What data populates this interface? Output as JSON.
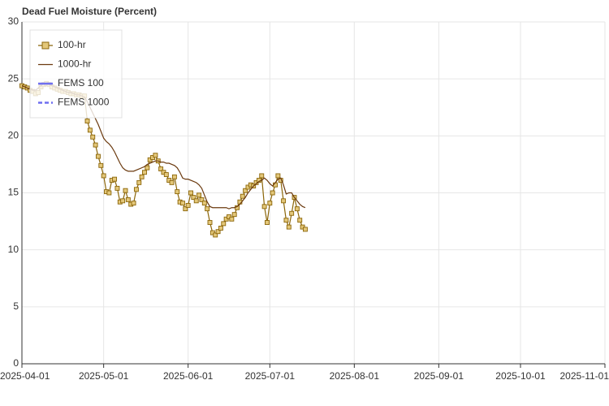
{
  "chart_data": {
    "type": "line",
    "title": "Dead Fuel Moisture (Percent)",
    "x": [
      "2025-04-01",
      "2025-04-02",
      "2025-04-03",
      "2025-04-04",
      "2025-04-05",
      "2025-04-06",
      "2025-04-07",
      "2025-04-08",
      "2025-04-09",
      "2025-04-10",
      "2025-04-11",
      "2025-04-12",
      "2025-04-13",
      "2025-04-14",
      "2025-04-15",
      "2025-04-16",
      "2025-04-17",
      "2025-04-18",
      "2025-04-19",
      "2025-04-20",
      "2025-04-21",
      "2025-04-22",
      "2025-04-23",
      "2025-04-24",
      "2025-04-25",
      "2025-04-26",
      "2025-04-27",
      "2025-04-28",
      "2025-04-29",
      "2025-04-30",
      "2025-05-01",
      "2025-05-02",
      "2025-05-03",
      "2025-05-04",
      "2025-05-05",
      "2025-05-06",
      "2025-05-07",
      "2025-05-08",
      "2025-05-09",
      "2025-05-10",
      "2025-05-11",
      "2025-05-12",
      "2025-05-13",
      "2025-05-14",
      "2025-05-15",
      "2025-05-16",
      "2025-05-17",
      "2025-05-18",
      "2025-05-19",
      "2025-05-20",
      "2025-05-21",
      "2025-05-22",
      "2025-05-23",
      "2025-05-24",
      "2025-05-25",
      "2025-05-26",
      "2025-05-27",
      "2025-05-28",
      "2025-05-29",
      "2025-05-30",
      "2025-05-31",
      "2025-06-01",
      "2025-06-02",
      "2025-06-03",
      "2025-06-04",
      "2025-06-05",
      "2025-06-06",
      "2025-06-07",
      "2025-06-08",
      "2025-06-09",
      "2025-06-10",
      "2025-06-11",
      "2025-06-12",
      "2025-06-13",
      "2025-06-14",
      "2025-06-15",
      "2025-06-16",
      "2025-06-17",
      "2025-06-18",
      "2025-06-19",
      "2025-06-20",
      "2025-06-21",
      "2025-06-22",
      "2025-06-23",
      "2025-06-24",
      "2025-06-25",
      "2025-06-26",
      "2025-06-27",
      "2025-06-28",
      "2025-06-29",
      "2025-06-30",
      "2025-07-01",
      "2025-07-02",
      "2025-07-03",
      "2025-07-04",
      "2025-07-05",
      "2025-07-06",
      "2025-07-07",
      "2025-07-08",
      "2025-07-09",
      "2025-07-10",
      "2025-07-11",
      "2025-07-12",
      "2025-07-13",
      "2025-07-14"
    ],
    "series": [
      {
        "name": "100-hr",
        "color": "#8b6508",
        "marker": "square",
        "values": [
          24.4,
          24.3,
          24.2,
          24.0,
          23.9,
          23.7,
          23.8,
          24.3,
          24.5,
          24.6,
          24.5,
          24.3,
          24.2,
          24.1,
          24.0,
          23.9,
          23.9,
          23.8,
          23.7,
          23.7,
          23.6,
          23.6,
          23.5,
          23.5,
          21.3,
          20.5,
          19.9,
          19.2,
          18.2,
          17.4,
          16.5,
          15.1,
          15.0,
          16.1,
          16.2,
          15.4,
          14.2,
          14.3,
          15.2,
          14.4,
          14.0,
          14.1,
          15.3,
          15.9,
          16.4,
          16.8,
          17.2,
          17.9,
          18.1,
          18.3,
          17.8,
          17.1,
          16.8,
          16.6,
          16.1,
          15.9,
          16.4,
          15.1,
          14.2,
          14.1,
          13.6,
          13.9,
          15.0,
          14.6,
          14.3,
          14.8,
          14.4,
          14.1,
          13.6,
          12.4,
          11.5,
          11.3,
          11.6,
          11.9,
          12.3,
          12.7,
          12.9,
          12.7,
          13.1,
          13.7,
          14.2,
          14.7,
          15.2,
          15.5,
          15.7,
          15.6,
          15.9,
          16.1,
          16.5,
          13.8,
          12.4,
          14.1,
          15.0,
          15.7,
          16.5,
          16.1,
          14.3,
          12.6,
          12.0,
          13.2,
          14.6,
          13.6,
          12.6,
          12.0,
          11.8
        ]
      },
      {
        "name": "1000-hr",
        "color": "#6b3a0f",
        "values": [
          24.4,
          24.3,
          24.2,
          24.1,
          24.0,
          24.0,
          24.2,
          24.4,
          24.6,
          24.6,
          24.5,
          24.4,
          24.3,
          24.2,
          24.1,
          24.0,
          23.9,
          23.8,
          23.8,
          23.7,
          23.6,
          23.6,
          23.5,
          23.4,
          23.0,
          22.5,
          22.0,
          21.5,
          21.0,
          20.4,
          19.8,
          19.5,
          19.3,
          19.0,
          18.6,
          18.1,
          17.6,
          17.2,
          17.0,
          16.9,
          16.9,
          16.9,
          17.0,
          17.1,
          17.2,
          17.3,
          17.5,
          17.6,
          17.7,
          17.8,
          17.8,
          17.7,
          17.7,
          17.6,
          17.6,
          17.5,
          17.4,
          17.2,
          16.8,
          16.3,
          16.2,
          16.2,
          16.1,
          16.0,
          15.9,
          15.7,
          15.4,
          14.8,
          14.2,
          13.8,
          13.7,
          13.7,
          13.7,
          13.7,
          13.7,
          13.7,
          13.6,
          13.7,
          13.7,
          13.8,
          14.0,
          14.3,
          14.6,
          15.0,
          15.3,
          15.6,
          15.8,
          16.0,
          16.1,
          16.3,
          16.1,
          15.8,
          15.6,
          15.9,
          16.2,
          16.3,
          15.7,
          14.9,
          15.0,
          15.0,
          14.6,
          14.3,
          14.0,
          13.8,
          13.7
        ]
      },
      {
        "name": "FEMS 100",
        "color": "#6f6ff0",
        "dash": false,
        "values": [
          null,
          null,
          null,
          null,
          null,
          null,
          null,
          null,
          null,
          null,
          null,
          null,
          null,
          null,
          null,
          null,
          null,
          null,
          null,
          null,
          null,
          null,
          null,
          null,
          null,
          null,
          null,
          null,
          null,
          null,
          null,
          null,
          null,
          null,
          null,
          null,
          null,
          null,
          null,
          null,
          null,
          null,
          null,
          null,
          null,
          null,
          null,
          null,
          null,
          null,
          null,
          null,
          null,
          null,
          null,
          null,
          null,
          null,
          null,
          null,
          null,
          null,
          null,
          null,
          null,
          null,
          null,
          null,
          null,
          null,
          null,
          null,
          null,
          null,
          null,
          null,
          null,
          null,
          null,
          null,
          null,
          null,
          null,
          null,
          null,
          null,
          null,
          null,
          null,
          null,
          null,
          null,
          null,
          null,
          null,
          null,
          null,
          null,
          null,
          null,
          null,
          null,
          null,
          null,
          null
        ]
      },
      {
        "name": "FEMS 1000",
        "color": "#6f6ff0",
        "dash": true,
        "values": [
          null,
          null,
          null,
          null,
          null,
          null,
          null,
          null,
          null,
          null,
          null,
          null,
          null,
          null,
          null,
          null,
          null,
          null,
          null,
          null,
          null,
          null,
          null,
          null,
          null,
          null,
          null,
          null,
          null,
          null,
          null,
          null,
          null,
          null,
          null,
          null,
          null,
          null,
          null,
          null,
          null,
          null,
          null,
          null,
          null,
          null,
          null,
          null,
          null,
          null,
          null,
          null,
          null,
          null,
          null,
          null,
          null,
          null,
          null,
          null,
          null,
          null,
          null,
          null,
          null,
          null,
          null,
          null,
          null,
          null,
          null,
          null,
          null,
          null,
          null,
          null,
          null,
          null,
          null,
          null,
          null,
          null,
          null,
          null,
          null,
          null,
          null,
          null,
          null,
          null,
          null,
          null,
          null,
          null,
          null,
          null,
          null,
          null,
          null,
          null,
          null,
          null,
          null,
          null,
          null
        ]
      }
    ],
    "xlim": [
      "2025-04-01",
      "2025-11-01"
    ],
    "xticks": [
      "2025-04-01",
      "2025-05-01",
      "2025-06-01",
      "2025-07-01",
      "2025-08-01",
      "2025-09-01",
      "2025-10-01",
      "2025-11-01"
    ],
    "ylim": [
      0,
      30
    ],
    "yticks": [
      0,
      5,
      10,
      15,
      20,
      25,
      30
    ],
    "grid": true,
    "legend": "upper left"
  }
}
